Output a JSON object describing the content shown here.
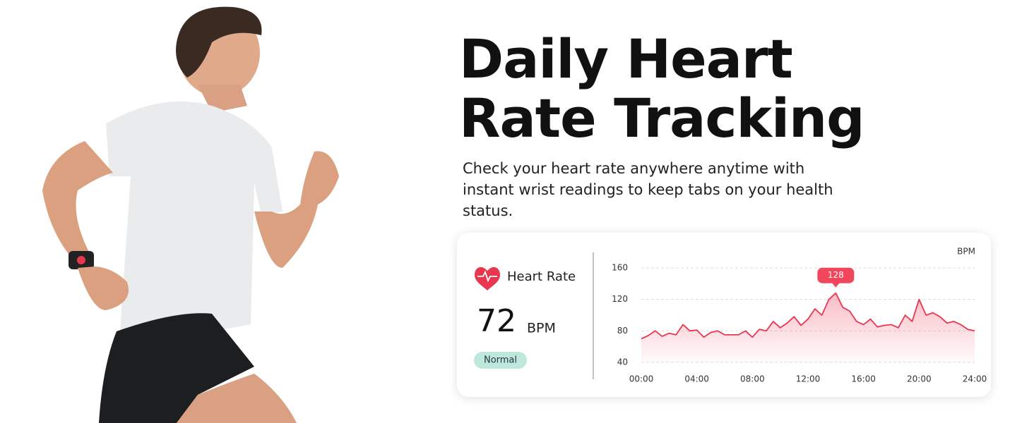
{
  "header": {
    "title": "Daily Heart Rate Tracking",
    "subtitle": "Check your heart rate anywhere anytime with instant wrist readings to keep tabs on your health status."
  },
  "card": {
    "label": "Heart Rate",
    "value": 72,
    "unit": "BPM",
    "status": "Normal"
  },
  "chart_data": {
    "type": "area",
    "ylabel": "BPM",
    "color": "#e8374f",
    "grid": true,
    "x": [
      0,
      0.5,
      1,
      1.5,
      2,
      2.5,
      3,
      3.5,
      4,
      4.5,
      5,
      5.5,
      6,
      6.5,
      7,
      7.5,
      8,
      8.5,
      9,
      9.5,
      10,
      10.5,
      11,
      11.5,
      12,
      12.5,
      13,
      13.5,
      14,
      14.5,
      15,
      15.5,
      16,
      16.5,
      17,
      17.5,
      18,
      18.5,
      19,
      19.5,
      20,
      20.5,
      21,
      21.5,
      22,
      22.5,
      23,
      23.5,
      24
    ],
    "values": [
      70,
      74,
      80,
      73,
      77,
      75,
      88,
      80,
      81,
      72,
      78,
      80,
      75,
      75,
      75,
      80,
      72,
      82,
      80,
      92,
      84,
      90,
      98,
      87,
      95,
      108,
      100,
      120,
      128,
      110,
      105,
      92,
      88,
      95,
      85,
      87,
      88,
      84,
      100,
      92,
      120,
      100,
      103,
      98,
      90,
      92,
      88,
      82,
      80
    ],
    "xlim": [
      0,
      24
    ],
    "xticks": [
      {
        "value": 0,
        "label": "00:00"
      },
      {
        "value": 4,
        "label": "04:00"
      },
      {
        "value": 8,
        "label": "08:00"
      },
      {
        "value": 12,
        "label": "12:00"
      },
      {
        "value": 16,
        "label": "16:00"
      },
      {
        "value": 20,
        "label": "20:00"
      },
      {
        "value": 24,
        "label": "24:00"
      }
    ],
    "ylim": [
      40,
      160
    ],
    "yticks": [
      40,
      80,
      120,
      160
    ],
    "annotation": {
      "x": 14,
      "y": 128
    }
  }
}
